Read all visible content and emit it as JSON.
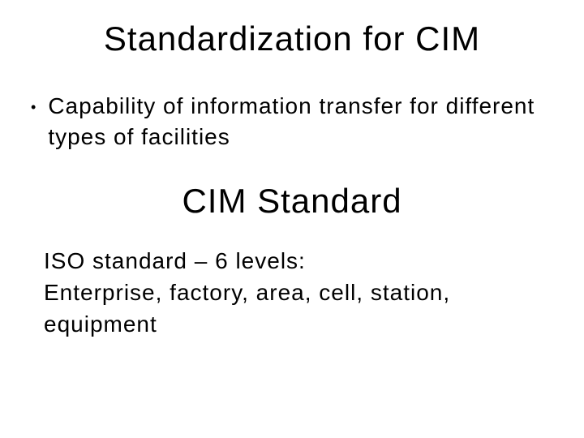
{
  "slide": {
    "title": "Standardization for CIM",
    "bullet": {
      "text": "Capability of information transfer for different types of facilities"
    },
    "subtitle": "CIM Standard",
    "body": {
      "line1": "ISO standard – 6 levels:",
      "line2": "Enterprise, factory, area, cell, station, equipment"
    }
  },
  "style": {
    "background_color": "#ffffff",
    "text_color": "#000000",
    "title_fontsize": 42,
    "body_fontsize": 28,
    "subtitle_fontsize": 42,
    "font_family": "Arial, Helvetica, sans-serif"
  }
}
